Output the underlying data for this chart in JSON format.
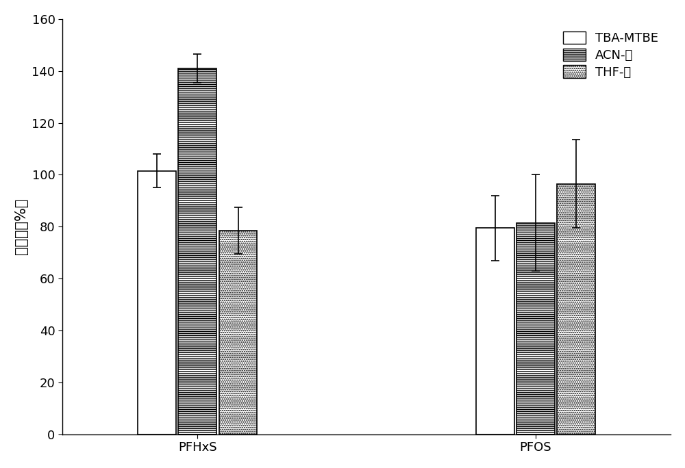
{
  "groups": [
    "PFHxS",
    "PFOS"
  ],
  "series": [
    "TBA-MTBE",
    "ACN-水",
    "THF-水"
  ],
  "values": {
    "PFHxS": [
      101.5,
      141.0,
      78.5
    ],
    "PFOS": [
      79.5,
      81.5,
      96.5
    ]
  },
  "errors": {
    "PFHxS": [
      6.5,
      5.5,
      9.0
    ],
    "PFOS": [
      12.5,
      18.5,
      17.0
    ]
  },
  "ylabel": "回收率（%）",
  "ylim": [
    0,
    160
  ],
  "yticks": [
    0,
    20,
    40,
    60,
    80,
    100,
    120,
    140,
    160
  ],
  "bar_width": 0.18,
  "legend_labels": [
    "TBA-MTBE",
    "ACN-水",
    "THF-水"
  ],
  "background_color": "#ffffff",
  "axis_fontsize": 15,
  "tick_fontsize": 13,
  "legend_fontsize": 13,
  "hatch_patterns": [
    "",
    "------",
    "......"
  ],
  "group_centers": [
    1.0,
    2.5
  ]
}
